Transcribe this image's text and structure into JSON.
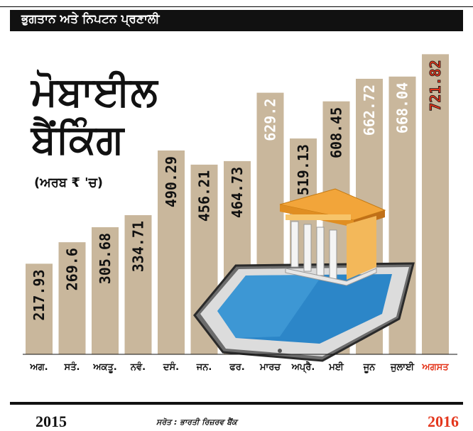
{
  "header": {
    "banner": "ਭੁਗਤਾਨ ਅਤੇ ਨਿਪਟਨ ਪ੍ਰਣਾਲੀ"
  },
  "title": {
    "line1": "ਮੋਬਾਈਲ",
    "line2": "ਬੈਂਕਿੰਗ",
    "unit": "(ਅਰਬ ₹ 'ਚ)"
  },
  "footer": {
    "year_start": "2015",
    "year_end": "2016",
    "source": "ਸਰੋਤ : ਭਾਰਤੀ ਰਿਜ਼ਰਵ ਬੈਂਕ"
  },
  "colors": {
    "bar": "#c9b79c",
    "highlight": "#e4361c",
    "text": "#111111",
    "screen": "#2c86c8"
  },
  "chart_data": {
    "type": "bar",
    "title": "ਮੋਬਾਈਲ ਬੈਂਕਿੰਗ",
    "ylabel": "(ਅਰਬ ₹ 'ਚ)",
    "ylim": [
      0,
      760
    ],
    "grid": false,
    "categories": [
      "ਅਗ.",
      "ਸਤੰ.",
      "ਅਕਤੂ.",
      "ਨਵੰ.",
      "ਦਸੰ.",
      "ਜਨ.",
      "ਫਰ.",
      "ਮਾਰਚ",
      "ਅਪ੍ਰੈ.",
      "ਮਈ",
      "ਜੂਨ",
      "ਜੁਲਾਈ",
      "ਅਗਸਤ"
    ],
    "values": [
      217.93,
      269.6,
      305.68,
      334.71,
      490.29,
      456.21,
      464.73,
      629.2,
      519.13,
      608.45,
      662.72,
      668.04,
      721.82
    ],
    "value_labels": [
      "217.93",
      "269.6",
      "305.68",
      "334.71",
      "490.29",
      "456.21",
      "464.73",
      "629.2",
      "519.13",
      "608.45",
      "662.72",
      "668.04",
      "721.82"
    ],
    "label_style": [
      "dark",
      "dark",
      "dark",
      "dark",
      "dark",
      "dark",
      "dark",
      "light",
      "dark",
      "dark",
      "light",
      "light",
      "highlight"
    ]
  }
}
